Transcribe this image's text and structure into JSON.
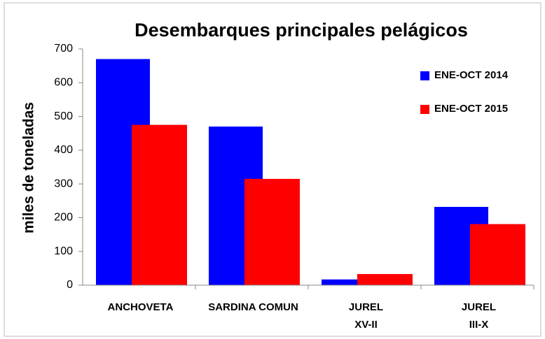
{
  "chart_data": {
    "type": "bar",
    "title": "Desembarques principales pelágicos",
    "y_label": "miles de toneladas",
    "categories": [
      "ANCHOVETA",
      "SARDINA COMUN",
      "JUREL\nXV-II",
      "JUREL\nIII-X"
    ],
    "series": [
      {
        "name": "ENE-OCT 2014",
        "color": "#0000ff",
        "values": [
          670,
          470,
          17,
          232
        ]
      },
      {
        "name": "ENE-OCT 2015",
        "color": "#ff0000",
        "values": [
          475,
          315,
          33,
          181
        ]
      }
    ],
    "ylim": [
      0,
      700
    ],
    "yticks": [
      0,
      100,
      200,
      300,
      400,
      500,
      600,
      700
    ],
    "grid": false,
    "legend": "top-right"
  }
}
